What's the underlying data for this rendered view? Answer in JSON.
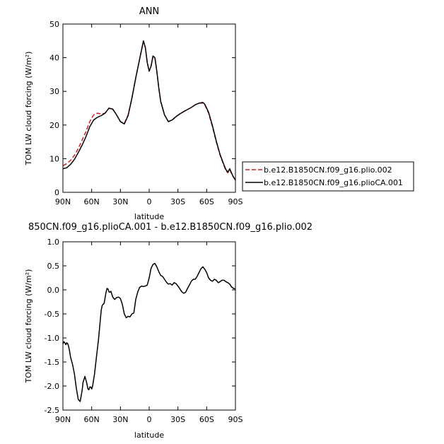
{
  "chart_data": [
    {
      "type": "line",
      "title": "ANN",
      "xlabel": "latitude",
      "ylabel": "TOM LW cloud forcing  (W/m²)",
      "x_tick_labels": [
        "90N",
        "60N",
        "30N",
        "0",
        "30S",
        "60S",
        "90S"
      ],
      "x_ticks": [
        90,
        60,
        30,
        0,
        -30,
        -60,
        -90
      ],
      "xlim": [
        90,
        -90
      ],
      "y_ticks": [
        0,
        10,
        20,
        30,
        40,
        50
      ],
      "ylim": [
        0,
        50
      ],
      "legend_position": "right",
      "series": [
        {
          "name": "b.e12.B1850CN.f09_g16.plio.002",
          "color": "#d42020",
          "dash": "dashed",
          "x": [
            90,
            86,
            82,
            78,
            74,
            70,
            66,
            62,
            58,
            54,
            50,
            46,
            42,
            38,
            34,
            30,
            26,
            22,
            18,
            14,
            10,
            6,
            4,
            2,
            0,
            -2,
            -4,
            -6,
            -8,
            -10,
            -12,
            -16,
            -20,
            -24,
            -28,
            -32,
            -36,
            -40,
            -44,
            -48,
            -52,
            -56,
            -58,
            -62,
            -66,
            -70,
            -74,
            -78,
            -80,
            -82,
            -84,
            -86,
            -88,
            -90
          ],
          "values": [
            7.9,
            8.5,
            9.5,
            11,
            13,
            15.5,
            18,
            21,
            23,
            23.5,
            23.3,
            23.5,
            25,
            24.7,
            23,
            21,
            20.5,
            23,
            28,
            34,
            39.5,
            45,
            43,
            38.5,
            36,
            37.5,
            40.5,
            40,
            36,
            31,
            27,
            23,
            21,
            21.5,
            22.5,
            23.3,
            24,
            24.6,
            25.2,
            26,
            26.5,
            26.5,
            26,
            23.5,
            19.5,
            15,
            11,
            8,
            6.5,
            5.8,
            6.8,
            5.5,
            4.5,
            3.8
          ]
        },
        {
          "name": "b.e12.B1850CN.f09_g16.plioCA.001",
          "color": "#000000",
          "dash": "solid",
          "x": [
            90,
            86,
            82,
            78,
            74,
            70,
            66,
            62,
            58,
            54,
            50,
            46,
            42,
            38,
            34,
            30,
            26,
            22,
            18,
            14,
            10,
            6,
            4,
            2,
            0,
            -2,
            -4,
            -6,
            -8,
            -10,
            -12,
            -16,
            -20,
            -24,
            -28,
            -32,
            -36,
            -40,
            -44,
            -48,
            -52,
            -56,
            -58,
            -62,
            -66,
            -70,
            -74,
            -78,
            -80,
            -82,
            -84,
            -86,
            -88,
            -90
          ],
          "values": [
            7,
            7.3,
            8.3,
            9.8,
            11.8,
            14,
            16.5,
            19.5,
            21.5,
            22.3,
            22.8,
            23.5,
            25,
            24.7,
            23,
            21,
            20.3,
            22.8,
            28,
            34,
            39.5,
            45,
            43,
            38.5,
            36,
            37.5,
            40.5,
            40,
            36,
            31,
            27,
            23,
            21,
            21.5,
            22.5,
            23.3,
            24,
            24.6,
            25.2,
            26,
            26.5,
            26.7,
            26.2,
            23.8,
            19.8,
            15.2,
            11.2,
            8.2,
            6.8,
            6,
            7,
            5.7,
            4.5,
            3.6
          ]
        }
      ]
    },
    {
      "type": "line",
      "title": "850CN.f09_g16.plioCA.001 - b.e12.B1850CN.f09_g16.plio.002",
      "xlabel": "latitude",
      "ylabel": "TOM LW cloud forcing  (W/m²)",
      "x_tick_labels": [
        "90N",
        "60N",
        "30N",
        "0",
        "30S",
        "60S",
        "90S"
      ],
      "x_ticks": [
        90,
        60,
        30,
        0,
        -30,
        -60,
        -90
      ],
      "xlim": [
        90,
        -90
      ],
      "y_tick_labels": [
        "-2.5",
        "-2.0",
        "-1.5",
        "-1.0",
        "-0.5",
        "0.0",
        "0.5",
        "1.0"
      ],
      "y_ticks": [
        -2.5,
        -2.0,
        -1.5,
        -1.0,
        -0.5,
        0.0,
        0.5,
        1.0
      ],
      "ylim": [
        -2.5,
        1.0
      ],
      "series": [
        {
          "color": "#000000",
          "x": [
            90,
            89,
            88,
            87,
            86,
            85,
            84,
            83,
            82,
            80,
            78,
            76,
            74,
            72,
            70,
            69,
            67,
            65,
            64,
            63,
            62,
            61,
            60,
            59,
            57,
            55,
            53,
            51,
            50,
            49,
            47,
            45,
            44,
            43,
            42,
            41,
            40,
            38,
            36,
            34,
            32,
            30,
            28,
            26,
            24,
            22,
            20,
            18,
            16,
            14,
            12,
            10,
            8,
            6,
            4,
            2,
            0,
            -2,
            -4,
            -6,
            -8,
            -10,
            -12,
            -14,
            -16,
            -18,
            -20,
            -22,
            -24,
            -26,
            -28,
            -30,
            -32,
            -34,
            -36,
            -38,
            -40,
            -42,
            -44,
            -46,
            -48,
            -50,
            -52,
            -54,
            -56,
            -58,
            -60,
            -62,
            -64,
            -66,
            -68,
            -70,
            -72,
            -74,
            -76,
            -78,
            -80,
            -82,
            -84,
            -86,
            -88,
            -90
          ],
          "values": [
            -1.12,
            -1.08,
            -1.1,
            -1.14,
            -1.1,
            -1.12,
            -1.18,
            -1.28,
            -1.4,
            -1.55,
            -1.75,
            -2.05,
            -2.28,
            -2.32,
            -2.1,
            -1.92,
            -1.8,
            -1.95,
            -2.05,
            -2.08,
            -2.02,
            -2.02,
            -2.06,
            -2.0,
            -1.75,
            -1.4,
            -1.05,
            -0.62,
            -0.42,
            -0.32,
            -0.28,
            -0.05,
            0.03,
            0.02,
            -0.04,
            -0.05,
            -0.03,
            -0.15,
            -0.2,
            -0.16,
            -0.15,
            -0.18,
            -0.3,
            -0.5,
            -0.58,
            -0.55,
            -0.56,
            -0.5,
            -0.48,
            -0.2,
            -0.05,
            0.05,
            0.08,
            0.07,
            0.08,
            0.1,
            0.25,
            0.45,
            0.53,
            0.55,
            0.48,
            0.38,
            0.3,
            0.28,
            0.22,
            0.16,
            0.12,
            0.13,
            0.1,
            0.15,
            0.13,
            0.08,
            0.02,
            -0.04,
            -0.07,
            -0.05,
            0.03,
            0.1,
            0.18,
            0.22,
            0.22,
            0.28,
            0.36,
            0.44,
            0.48,
            0.43,
            0.36,
            0.25,
            0.2,
            0.18,
            0.22,
            0.2,
            0.15,
            0.17,
            0.2,
            0.2,
            0.17,
            0.15,
            0.12,
            0.06,
            0.03,
            0.02
          ]
        }
      ]
    }
  ]
}
